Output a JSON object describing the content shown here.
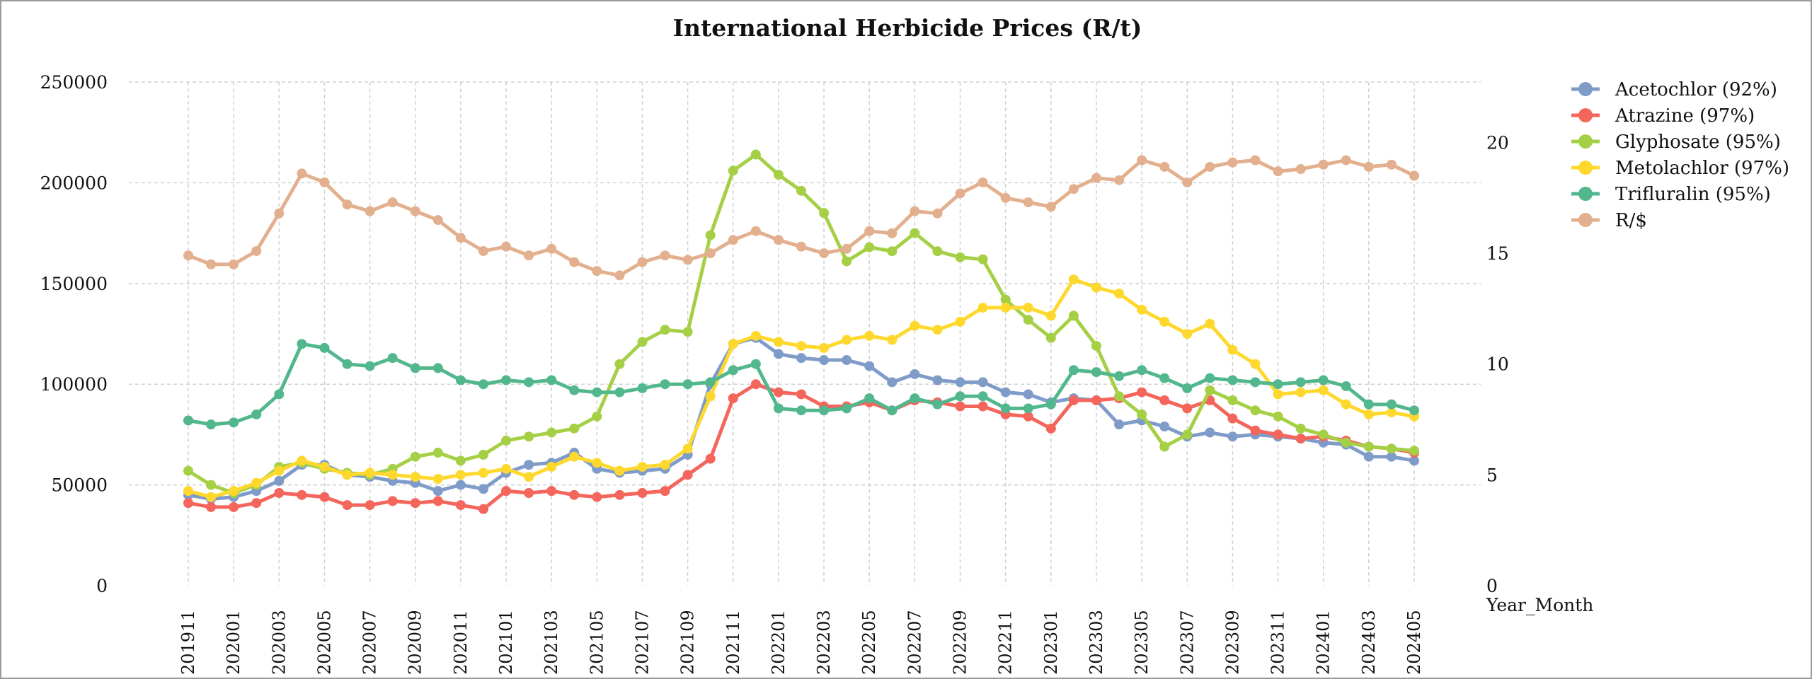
{
  "chart_data": {
    "type": "line",
    "title": "International Herbicide Prices (R/t)",
    "xlabel": "Year_Month",
    "ylabel": "",
    "ylim": [
      0,
      250000
    ],
    "yticks": [
      0,
      50000,
      100000,
      150000,
      200000,
      250000
    ],
    "y2lim": [
      0,
      22.727
    ],
    "y2ticks": [
      0,
      5,
      10,
      15,
      20
    ],
    "grid": true,
    "legend_position": "right",
    "x": [
      "201911",
      "201912",
      "202001",
      "202002",
      "202003",
      "202004",
      "202005",
      "202006",
      "202007",
      "202008",
      "202009",
      "202010",
      "202011",
      "202012",
      "202101",
      "202102",
      "202103",
      "202104",
      "202105",
      "202106",
      "202107",
      "202108",
      "202109",
      "202110",
      "202111",
      "202112",
      "202201",
      "202202",
      "202203",
      "202204",
      "202205",
      "202206",
      "202207",
      "202208",
      "202209",
      "202210",
      "202211",
      "202212",
      "202301",
      "202302",
      "202303",
      "202304",
      "202305",
      "202306",
      "202307",
      "202308",
      "202309",
      "202310",
      "202311",
      "202312",
      "202401",
      "202402",
      "202403",
      "202404",
      "202405"
    ],
    "x_tick_labels": [
      "201911",
      "202001",
      "202003",
      "202005",
      "202007",
      "202009",
      "202011",
      "202101",
      "202103",
      "202105",
      "202107",
      "202109",
      "202111",
      "202201",
      "202203",
      "202205",
      "202207",
      "202209",
      "202211",
      "202301",
      "202303",
      "202305",
      "202307",
      "202309",
      "202311",
      "202401",
      "202403",
      "202405"
    ],
    "series": [
      {
        "name": "Acetochlor (92%)",
        "axis": "left",
        "color": "#7f9cc9",
        "values": [
          45000,
          43000,
          44000,
          47000,
          52000,
          60000,
          60000,
          55000,
          54000,
          52000,
          51000,
          47000,
          50000,
          48000,
          56000,
          60000,
          61000,
          66000,
          58000,
          56000,
          57000,
          58000,
          65000,
          100000,
          120000,
          123000,
          115000,
          113000,
          112000,
          112000,
          109000,
          101000,
          105000,
          102000,
          101000,
          101000,
          96000,
          95000,
          91000,
          93000,
          92000,
          80000,
          82000,
          79000,
          74000,
          76000,
          74000,
          75000,
          74000,
          73000,
          71000,
          70000,
          64000,
          64000,
          62000
        ]
      },
      {
        "name": "Atrazine (97%)",
        "axis": "left",
        "color": "#f4655b",
        "values": [
          41000,
          39000,
          39000,
          41000,
          46000,
          45000,
          44000,
          40000,
          40000,
          42000,
          41000,
          42000,
          40000,
          38000,
          47000,
          46000,
          47000,
          45000,
          44000,
          45000,
          46000,
          47000,
          55000,
          63000,
          93000,
          100000,
          96000,
          95000,
          89000,
          89000,
          91000,
          87000,
          92000,
          91000,
          89000,
          89000,
          85000,
          84000,
          78000,
          92000,
          92000,
          93000,
          96000,
          92000,
          88000,
          92000,
          83000,
          77000,
          75000,
          73000,
          74000,
          72000,
          69000,
          68000,
          66000
        ]
      },
      {
        "name": "Glyphosate (95%)",
        "axis": "left",
        "color": "#a5d046",
        "values": [
          57000,
          50000,
          46000,
          50000,
          59000,
          61000,
          58000,
          56000,
          55000,
          58000,
          64000,
          66000,
          62000,
          65000,
          72000,
          74000,
          76000,
          78000,
          84000,
          110000,
          121000,
          127000,
          126000,
          174000,
          206000,
          214000,
          204000,
          196000,
          185000,
          161000,
          168000,
          166000,
          175000,
          166000,
          163000,
          162000,
          142000,
          132000,
          123000,
          134000,
          119000,
          94000,
          85000,
          69000,
          75000,
          97000,
          92000,
          87000,
          84000,
          78000,
          75000,
          71000,
          69000,
          68000,
          67000
        ]
      },
      {
        "name": "Metolachlor (97%)",
        "axis": "left",
        "color": "#fed82d",
        "values": [
          47000,
          44000,
          47000,
          51000,
          57000,
          62000,
          59000,
          55000,
          56000,
          55000,
          54000,
          53000,
          55000,
          56000,
          58000,
          54000,
          59000,
          64000,
          61000,
          57000,
          59000,
          60000,
          68000,
          94000,
          120000,
          124000,
          121000,
          119000,
          118000,
          122000,
          124000,
          122000,
          129000,
          127000,
          131000,
          138000,
          138000,
          138000,
          134000,
          152000,
          148000,
          145000,
          137000,
          131000,
          125000,
          130000,
          117000,
          110000,
          95000,
          96000,
          97000,
          90000,
          85000,
          86000,
          84000
        ]
      },
      {
        "name": "Trifluralin (95%)",
        "axis": "left",
        "color": "#52b78d",
        "values": [
          82000,
          80000,
          81000,
          85000,
          95000,
          120000,
          118000,
          110000,
          109000,
          113000,
          108000,
          108000,
          102000,
          100000,
          102000,
          101000,
          102000,
          97000,
          96000,
          96000,
          98000,
          100000,
          100000,
          101000,
          107000,
          110000,
          88000,
          87000,
          87000,
          88000,
          93000,
          87000,
          93000,
          90000,
          94000,
          94000,
          88000,
          88000,
          90000,
          107000,
          106000,
          104000,
          107000,
          103000,
          98000,
          103000,
          102000,
          101000,
          100000,
          101000,
          102000,
          99000,
          90000,
          90000,
          87000
        ]
      },
      {
        "name": "R/$",
        "axis": "right",
        "color": "#e2b08e",
        "values": [
          14.9,
          14.5,
          14.5,
          15.1,
          16.8,
          18.6,
          18.2,
          17.2,
          16.9,
          17.3,
          16.9,
          16.5,
          15.7,
          15.1,
          15.3,
          14.9,
          15.2,
          14.6,
          14.2,
          14.0,
          14.6,
          14.9,
          14.7,
          15.0,
          15.6,
          16.0,
          15.6,
          15.3,
          15.0,
          15.2,
          16.0,
          15.9,
          16.9,
          16.8,
          17.7,
          18.2,
          17.5,
          17.3,
          17.1,
          17.9,
          18.4,
          18.3,
          19.2,
          18.9,
          18.2,
          18.9,
          19.1,
          19.2,
          18.7,
          18.8,
          19.0,
          19.2,
          18.9,
          19.0,
          18.5
        ]
      }
    ]
  }
}
